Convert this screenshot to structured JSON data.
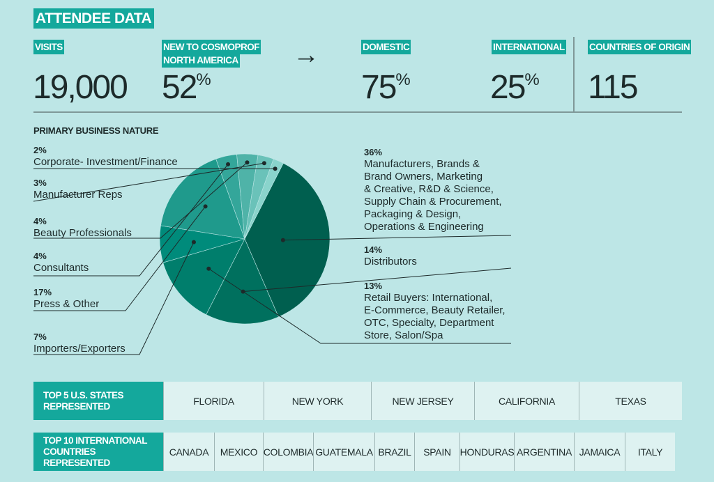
{
  "title": "ATTENDEE DATA",
  "stats": {
    "visits": {
      "label": "VISITS",
      "value": "19,000"
    },
    "new": {
      "label_line1": "NEW TO COSMOPROF",
      "label_line2": "NORTH AMERICA",
      "value": "52",
      "unit": "%"
    },
    "arrow": "→",
    "domestic": {
      "label": "DOMESTIC",
      "value": "75",
      "unit": "%"
    },
    "international": {
      "label": "INTERNATIONAL",
      "value": "25",
      "unit": "%"
    },
    "countries": {
      "label": "COUNTRIES OF ORIGIN",
      "value": "115"
    }
  },
  "chart_data": {
    "type": "pie",
    "title": "PRIMARY BUSINESS NATURE",
    "slices": [
      {
        "pct": "36%",
        "value": 36,
        "lines": [
          "Manufacturers, Brands &",
          "Brand Owners, Marketing",
          "& Creative, R&D & Science,",
          "Supply Chain & Procurement,",
          "Packaging & Design,",
          "Operations & Engineering"
        ],
        "color": "#005f4f"
      },
      {
        "pct": "14%",
        "value": 14,
        "lines": [
          "Distributors"
        ],
        "color": "#00705e"
      },
      {
        "pct": "13%",
        "value": 13,
        "lines": [
          "Retail Buyers: International,",
          "E-Commerce, Beauty Retailer,",
          "OTC, Specialty, Department",
          "Store, Salon/Spa"
        ],
        "color": "#007e6c"
      },
      {
        "pct": "7%",
        "value": 7,
        "lines": [
          "Importers/Exporters"
        ],
        "color": "#008b7b"
      },
      {
        "pct": "17%",
        "value": 17,
        "lines": [
          "Press & Other"
        ],
        "color": "#1f9a8c"
      },
      {
        "pct": "4%",
        "value": 4,
        "lines": [
          "Consultants"
        ],
        "color": "#34a69a"
      },
      {
        "pct": "4%",
        "value": 4,
        "lines": [
          "Beauty Professionals"
        ],
        "color": "#4fb3a8"
      },
      {
        "pct": "3%",
        "value": 3,
        "lines": [
          "Manufacturer Reps"
        ],
        "color": "#6ac2b9"
      },
      {
        "pct": "2%",
        "value": 2,
        "lines": [
          "Corporate- Investment/Finance"
        ],
        "color": "#8ad4cc"
      }
    ]
  },
  "states": {
    "header_line1": "TOP 5 U.S. STATES",
    "header_line2": "REPRESENTED",
    "items": [
      "FLORIDA",
      "NEW YORK",
      "NEW JERSEY",
      "CALIFORNIA",
      "TEXAS"
    ]
  },
  "countries": {
    "header_line1": "TOP 10 INTERNATIONAL",
    "header_line2": "COUNTRIES REPRESENTED",
    "items": [
      "CANADA",
      "MEXICO",
      "COLOMBIA",
      "GUATEMALA",
      "BRAZIL",
      "SPAIN",
      "HONDURAS",
      "ARGENTINA",
      "JAMAICA",
      "ITALY"
    ]
  }
}
